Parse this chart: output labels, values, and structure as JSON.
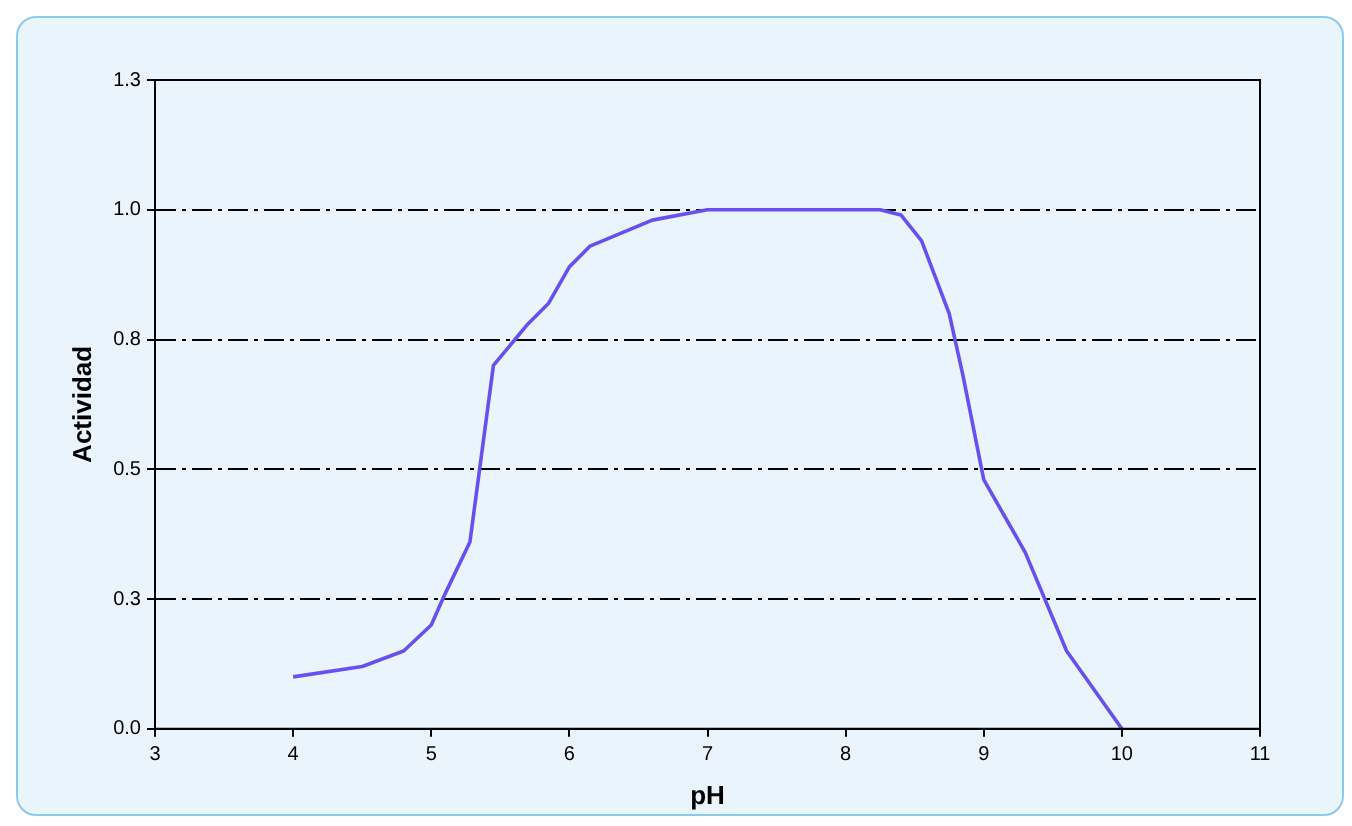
{
  "chart_data": {
    "type": "line",
    "xlabel": "pH",
    "ylabel": "Actividad",
    "x": [
      4,
      4.5,
      4.8,
      5,
      5.1,
      5.28,
      5.45,
      5.7,
      5.85,
      6,
      6.15,
      6.6,
      7,
      8.25,
      8.4,
      8.55,
      8.75,
      8.85,
      9,
      9.15,
      9.3,
      9.6,
      10
    ],
    "series": [
      {
        "color": "#6a4ff0",
        "values": [
          0.1,
          0.12,
          0.15,
          0.2,
          0.26,
          0.36,
          0.7,
          0.78,
          0.82,
          0.89,
          0.93,
          0.98,
          1,
          1,
          0.99,
          0.94,
          0.8,
          0.68,
          0.48,
          0.41,
          0.34,
          0.15,
          0
        ]
      }
    ],
    "xlim": [
      3,
      11
    ],
    "xticks": [
      3,
      4,
      5,
      6,
      7,
      8,
      9,
      10,
      11
    ],
    "ylim": [
      0,
      1.25
    ],
    "yticks": [
      {
        "value": 0,
        "label": "0.0"
      },
      {
        "value": 0.25,
        "label": "0.3"
      },
      {
        "value": 0.5,
        "label": "0.5"
      },
      {
        "value": 0.75,
        "label": "0.8"
      },
      {
        "value": 1,
        "label": "1.0"
      },
      {
        "value": 1.25,
        "label": "1.3"
      }
    ],
    "grid": "y",
    "legend": false,
    "marker": "none",
    "line_style": "solid"
  }
}
